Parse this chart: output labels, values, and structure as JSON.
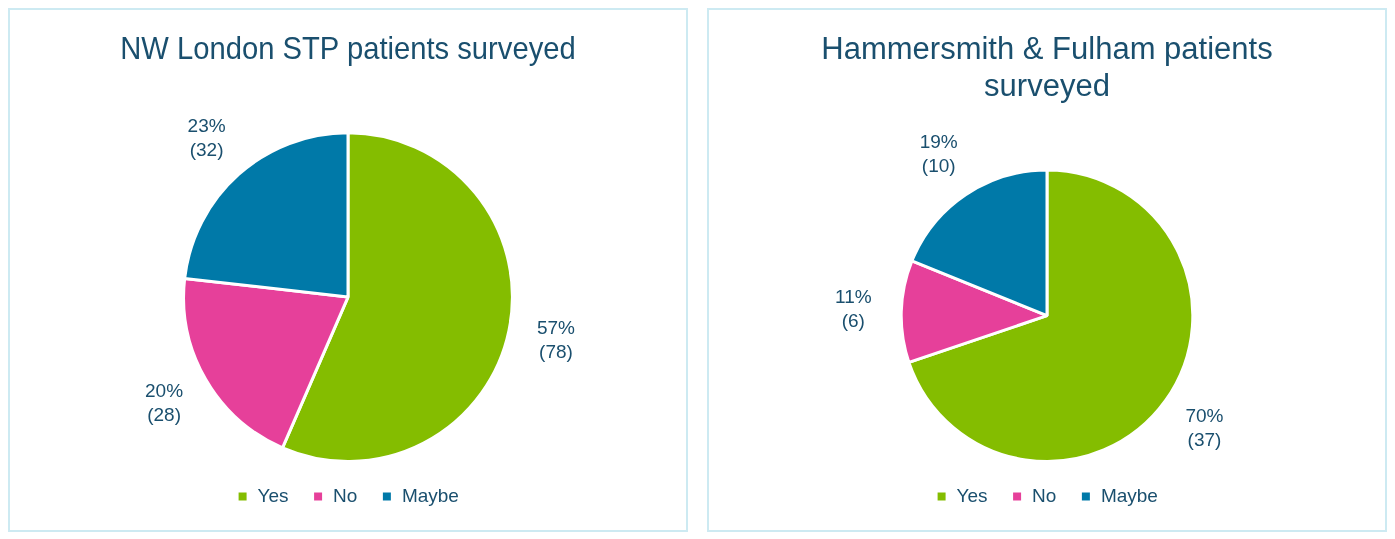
{
  "chart_data": [
    {
      "type": "pie",
      "title": "NW London STP patients surveyed",
      "categories": [
        "Yes",
        "No",
        "Maybe"
      ],
      "values": [
        78,
        28,
        32
      ],
      "colors": [
        "#84bd00",
        "#e6409a",
        "#0079a8"
      ],
      "value_labels": [
        "57% (78)",
        "20% (28)",
        "23% (32)"
      ],
      "legend": "bottom"
    },
    {
      "type": "pie",
      "title": "Hammersmith & Fulham patients surveyed",
      "categories": [
        "Yes",
        "No",
        "Maybe"
      ],
      "values": [
        37,
        6,
        10
      ],
      "colors": [
        "#84bd00",
        "#e6409a",
        "#0079a8"
      ],
      "value_labels": [
        "70% (37)",
        "11% (6)",
        "19% (10)"
      ],
      "legend": "bottom"
    }
  ]
}
